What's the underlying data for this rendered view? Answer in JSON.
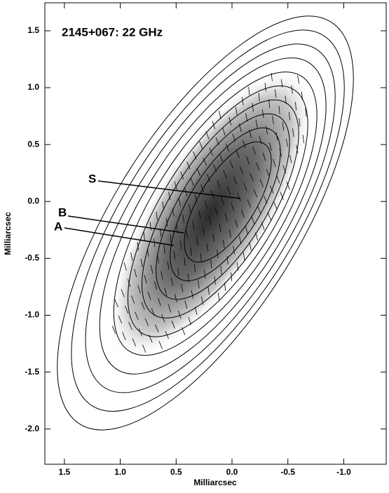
{
  "chart_data": {
    "type": "contour",
    "xlabel": "Milliarcsec",
    "ylabel": "Milliarcsec",
    "xlim": [
      1.675,
      -1.38
    ],
    "ylim": [
      -2.31,
      1.746
    ],
    "xticks": [
      1.5,
      {
        "value": 1,
        "label": "1.0"
      },
      0.5,
      {
        "value": 0,
        "label": "0.0"
      },
      -0.5,
      {
        "value": -1,
        "label": "-1.0"
      }
    ],
    "yticks": [
      1.5,
      {
        "value": 1,
        "label": "1.0"
      },
      0.5,
      {
        "value": 0,
        "label": "0.0"
      },
      -0.5,
      {
        "value": -1,
        "label": "-1.0"
      },
      -1.5,
      {
        "value": -2,
        "label": "-2.0"
      }
    ],
    "annotations": [
      "2145+067: 22 GHz",
      "S",
      "B",
      "A"
    ]
  }
}
